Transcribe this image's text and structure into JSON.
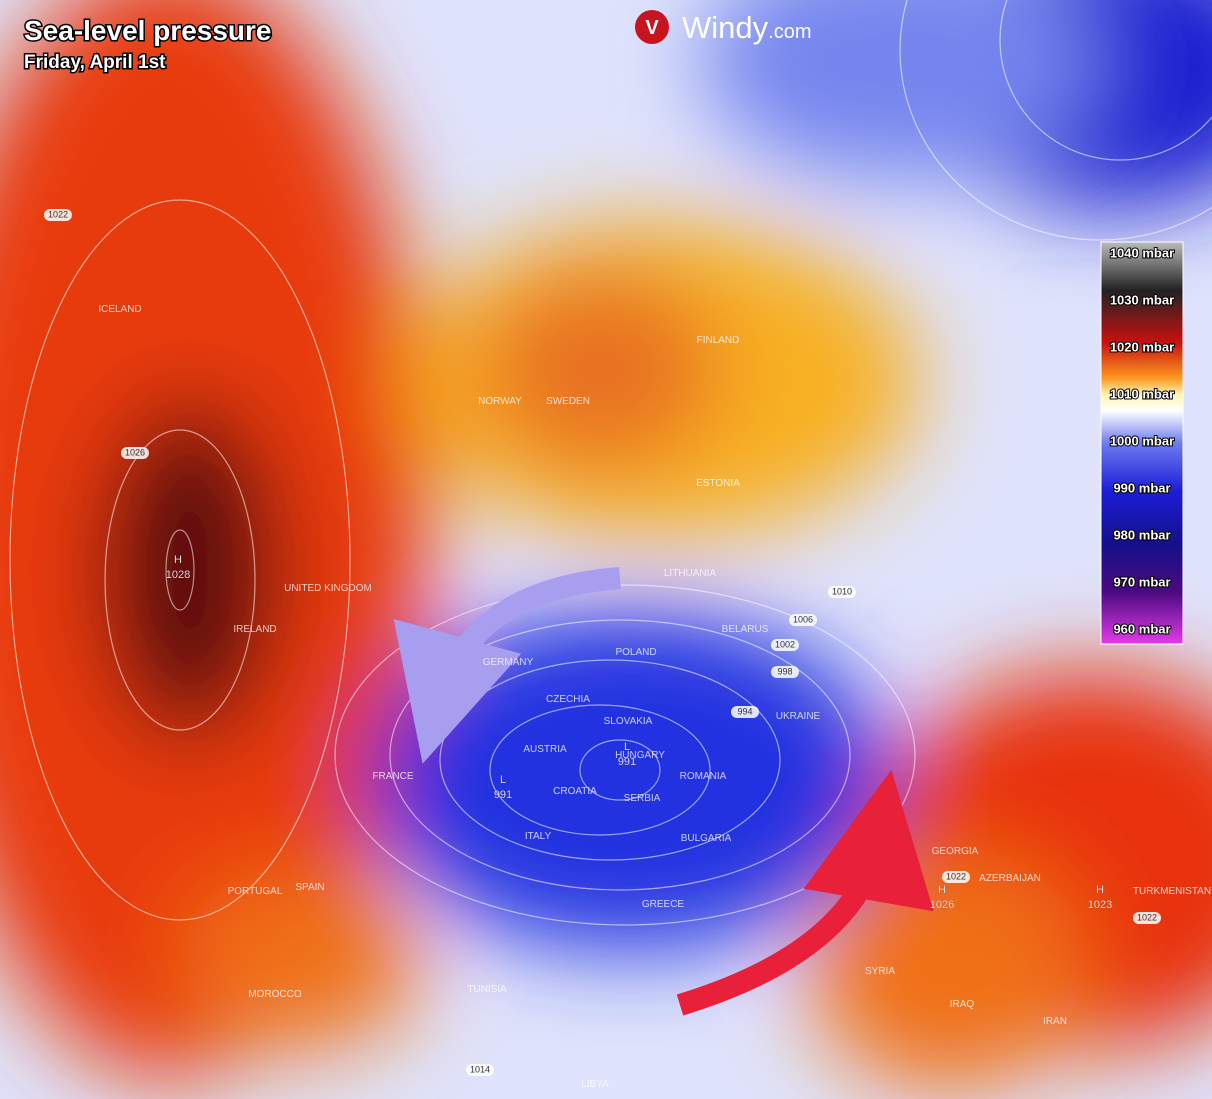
{
  "header": {
    "title": "Sea-level pressure",
    "subtitle": "Friday, April 1st",
    "brand": "Windy",
    "brand_suffix": ".com"
  },
  "legend": {
    "labels": [
      "1040 mbar",
      "1030 mbar",
      "1020 mbar",
      "1010 mbar",
      "1000 mbar",
      "990 mbar",
      "980 mbar",
      "970 mbar",
      "960 mbar"
    ]
  },
  "places": [
    "ICELAND",
    "NORWAY",
    "SWEDEN",
    "FINLAND",
    "ESTONIA",
    "LITHUANIA",
    "BELARUS",
    "POLAND",
    "GERMANY",
    "CZECHIA",
    "SLOVAKIA",
    "UKRAINE",
    "AUSTRIA",
    "HUNGARY",
    "ROMANIA",
    "CROATIA",
    "SERBIA",
    "ITALY",
    "BULGARIA",
    "GREECE",
    "FRANCE",
    "UNITED KINGDOM",
    "IRELAND",
    "SPAIN",
    "PORTUGAL",
    "MOROCCO",
    "TUNISIA",
    "LIBYA",
    "GEORGIA",
    "AZERBAIJAN",
    "TURKMENISTAN",
    "SYRIA",
    "IRAQ",
    "IRAN"
  ],
  "isobar_labels": [
    "1022",
    "1026",
    "1010",
    "1006",
    "1002",
    "998",
    "994",
    "1022",
    "1022",
    "1014"
  ],
  "centers": [
    {
      "symbol": "H",
      "value": "1028"
    },
    {
      "symbol": "L",
      "value": "991"
    },
    {
      "symbol": "L",
      "value": "991"
    },
    {
      "symbol": "H",
      "value": "1026"
    },
    {
      "symbol": "H",
      "value": "1023"
    }
  ]
}
